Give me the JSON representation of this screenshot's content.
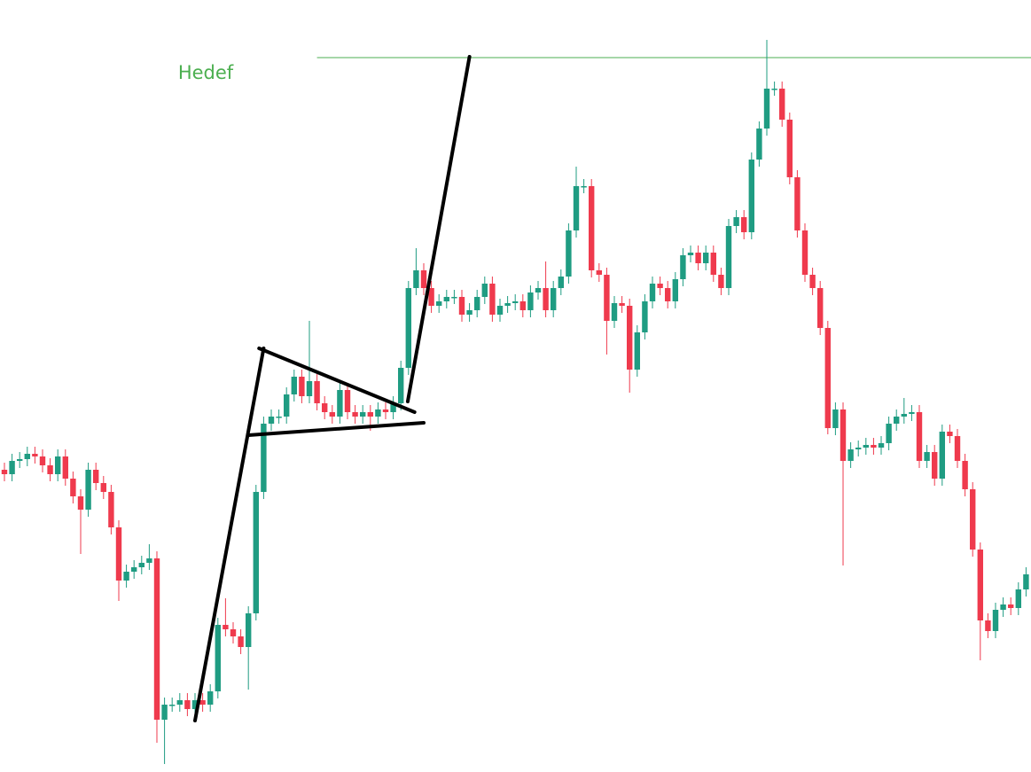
{
  "chart_data": {
    "type": "candlestick",
    "up_color": "#1f9c82",
    "down_color": "#ef3a4d",
    "xlim": [
      -0.58,
      134.65
    ],
    "ylim": [
      0,
      871
    ],
    "grid": false,
    "open": [
      341,
      336,
      351,
      353,
      359,
      356,
      346,
      336,
      356,
      331,
      311,
      296,
      341,
      326,
      316,
      276,
      216,
      226,
      231,
      236,
      241,
      59,
      76,
      76,
      81,
      71,
      81,
      76,
      91,
      166,
      161,
      153,
      141,
      179,
      316,
      393,
      401,
      401,
      426,
      446,
      424,
      441,
      416,
      406,
      401,
      431,
      406,
      401,
      406,
      401,
      409,
      406,
      416,
      456,
      546,
      566,
      546,
      526,
      531,
      536,
      536,
      516,
      521,
      536,
      551,
      516,
      526,
      529,
      531,
      521,
      541,
      546,
      521,
      546,
      559,
      611,
      661,
      661,
      566,
      561,
      509,
      529,
      526,
      454,
      496,
      531,
      551,
      546,
      531,
      556,
      583,
      586,
      574,
      586,
      561,
      546,
      616,
      626,
      609,
      691,
      726,
      771,
      771,
      736,
      671,
      611,
      561,
      546,
      501,
      388,
      409,
      351,
      364,
      366,
      369,
      366,
      371,
      393,
      401,
      404,
      406,
      351,
      361,
      331,
      384,
      379,
      351,
      319,
      251,
      171,
      159,
      183,
      189,
      185,
      206
    ],
    "high": [
      349,
      359,
      361,
      367,
      367,
      364,
      354,
      364,
      364,
      339,
      319,
      349,
      349,
      334,
      324,
      284,
      234,
      239,
      244,
      257,
      249,
      84,
      84,
      89,
      89,
      89,
      89,
      99,
      174,
      196,
      169,
      161,
      187,
      324,
      401,
      409,
      409,
      434,
      454,
      454,
      509,
      449,
      424,
      414,
      439,
      439,
      414,
      414,
      414,
      417,
      417,
      424,
      464,
      554,
      591,
      574,
      554,
      539,
      544,
      544,
      544,
      529,
      544,
      559,
      559,
      534,
      537,
      539,
      539,
      549,
      554,
      576,
      554,
      567,
      619,
      683,
      669,
      669,
      574,
      569,
      537,
      537,
      534,
      504,
      539,
      559,
      559,
      554,
      564,
      591,
      594,
      594,
      594,
      594,
      569,
      624,
      634,
      634,
      699,
      734,
      826,
      779,
      779,
      744,
      679,
      619,
      569,
      554,
      509,
      417,
      417,
      372,
      374,
      377,
      377,
      379,
      401,
      409,
      422,
      414,
      414,
      369,
      369,
      392,
      392,
      387,
      359,
      327,
      259,
      179,
      191,
      197,
      197,
      214,
      231
    ],
    "low": [
      328,
      328,
      343,
      345,
      348,
      338,
      328,
      328,
      323,
      303,
      246,
      288,
      318,
      308,
      268,
      193,
      208,
      218,
      223,
      228,
      33,
      9,
      68,
      68,
      63,
      63,
      68,
      68,
      83,
      153,
      145,
      133,
      93,
      171,
      308,
      385,
      393,
      393,
      418,
      416,
      416,
      408,
      398,
      393,
      393,
      398,
      393,
      393,
      385,
      393,
      398,
      398,
      408,
      448,
      538,
      538,
      518,
      518,
      523,
      528,
      508,
      508,
      513,
      528,
      508,
      508,
      518,
      521,
      513,
      513,
      533,
      513,
      513,
      538,
      551,
      603,
      653,
      558,
      553,
      471,
      501,
      518,
      428,
      446,
      488,
      523,
      538,
      523,
      523,
      548,
      575,
      566,
      566,
      553,
      538,
      538,
      608,
      601,
      601,
      683,
      718,
      763,
      728,
      663,
      603,
      553,
      538,
      493,
      381,
      380,
      233,
      343,
      356,
      358,
      358,
      358,
      363,
      385,
      393,
      396,
      343,
      343,
      323,
      323,
      371,
      343,
      311,
      243,
      126,
      151,
      151,
      175,
      177,
      177,
      198
    ],
    "close": [
      336,
      351,
      353,
      359,
      356,
      346,
      336,
      356,
      331,
      311,
      296,
      341,
      326,
      316,
      276,
      216,
      226,
      231,
      236,
      241,
      59,
      76,
      76,
      81,
      71,
      81,
      76,
      91,
      166,
      161,
      153,
      141,
      179,
      316,
      393,
      401,
      401,
      426,
      446,
      424,
      441,
      416,
      406,
      401,
      431,
      406,
      401,
      406,
      401,
      409,
      406,
      416,
      456,
      546,
      566,
      546,
      526,
      531,
      536,
      536,
      516,
      521,
      536,
      551,
      516,
      526,
      529,
      531,
      521,
      541,
      546,
      521,
      546,
      559,
      611,
      661,
      661,
      566,
      561,
      509,
      529,
      526,
      454,
      496,
      531,
      551,
      546,
      531,
      556,
      583,
      586,
      574,
      586,
      561,
      546,
      616,
      626,
      609,
      691,
      726,
      771,
      771,
      736,
      671,
      611,
      561,
      546,
      501,
      388,
      409,
      351,
      364,
      366,
      369,
      366,
      371,
      393,
      401,
      404,
      406,
      351,
      361,
      331,
      384,
      379,
      351,
      319,
      251,
      171,
      159,
      183,
      189,
      185,
      206,
      223
    ],
    "trendline_color": "#000000",
    "trendlines": [
      {
        "x": [
          25.0,
          34.0
        ],
        "y": [
          58,
          478
        ]
      },
      {
        "x": [
          33.4,
          53.8
        ],
        "y": [
          478,
          406
        ]
      },
      {
        "x": [
          32.0,
          55.0
        ],
        "y": [
          380,
          394
        ]
      },
      {
        "x": [
          52.9,
          61.0
        ],
        "y": [
          418,
          807
        ]
      }
    ],
    "target": {
      "label": "Hedef",
      "value": 806,
      "x": [
        41.0,
        134.65
      ],
      "color": "#4caf50"
    }
  }
}
